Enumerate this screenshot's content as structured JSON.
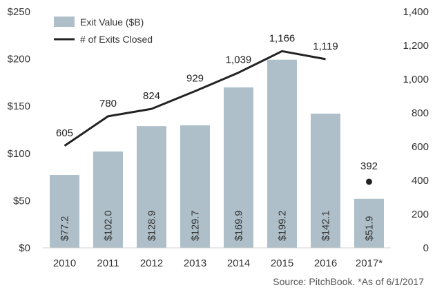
{
  "chart_data": {
    "type": "bar",
    "categories": [
      "2010",
      "2011",
      "2012",
      "2013",
      "2014",
      "2015",
      "2016",
      "2017*"
    ],
    "series": [
      {
        "name": "Exit Value ($B)",
        "type": "bar",
        "axis": "left",
        "values": [
          77.2,
          102.0,
          128.9,
          129.7,
          169.9,
          199.2,
          142.1,
          51.9
        ],
        "labels": [
          "$77.2",
          "$102.0",
          "$128.9",
          "$129.7",
          "$169.9",
          "$199.2",
          "$142.1",
          "$51.9"
        ],
        "color": "#aebfc9"
      },
      {
        "name": "# of Exits Closed",
        "type": "line",
        "axis": "right",
        "values": [
          605,
          780,
          824,
          929,
          1039,
          1166,
          1119,
          392
        ],
        "labels": [
          "605",
          "780",
          "824",
          "929",
          "1,039",
          "1,166",
          "1,119",
          "392"
        ],
        "color": "#222222",
        "standalone_marker_index": 7
      }
    ],
    "y_left": {
      "range": [
        0,
        250
      ],
      "ticks": [
        0,
        50,
        100,
        150,
        200,
        250
      ],
      "tick_labels": [
        "$0",
        "$50",
        "$100",
        "$150",
        "$200",
        "$250"
      ]
    },
    "y_right": {
      "range": [
        0,
        1400
      ],
      "ticks": [
        0,
        200,
        400,
        600,
        800,
        1000,
        1200,
        1400
      ],
      "tick_labels": [
        "0",
        "200",
        "400",
        "600",
        "800",
        "1,000",
        "1,200",
        "1,400"
      ]
    },
    "title": "",
    "xlabel": "",
    "ylabel": "",
    "grid": false,
    "legend_position": "top-left",
    "source_note": "Source: PitchBook. *As of 6/1/2017"
  }
}
